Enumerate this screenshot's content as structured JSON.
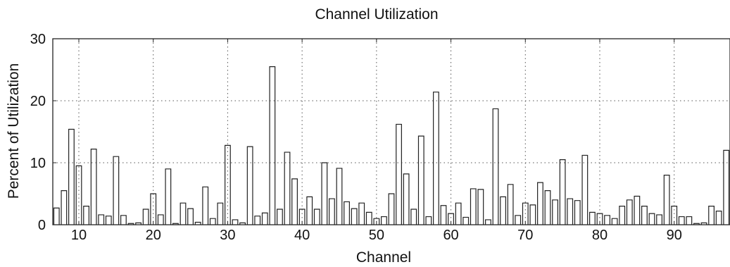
{
  "chart_data": {
    "type": "bar",
    "title": "Channel Utilization",
    "xlabel": "Channel",
    "ylabel": "Percent of Utilization",
    "xlim": [
      6.5,
      97.5
    ],
    "ylim": [
      0,
      30
    ],
    "xticks": [
      10,
      20,
      30,
      40,
      50,
      60,
      70,
      80,
      90
    ],
    "yticks": [
      0,
      10,
      20,
      30
    ],
    "grid": true,
    "grid_style": "dotted",
    "legend": "none",
    "colors": {
      "stroke": "#222222",
      "grid": "#555555",
      "background": "#ffffff"
    },
    "x": [
      7,
      8,
      9,
      10,
      11,
      12,
      13,
      14,
      15,
      16,
      17,
      18,
      19,
      20,
      21,
      22,
      23,
      24,
      25,
      26,
      27,
      28,
      29,
      30,
      31,
      32,
      33,
      34,
      35,
      36,
      37,
      38,
      39,
      40,
      41,
      42,
      43,
      44,
      45,
      46,
      47,
      48,
      49,
      50,
      51,
      52,
      53,
      54,
      55,
      56,
      57,
      58,
      59,
      60,
      61,
      62,
      63,
      64,
      65,
      66,
      67,
      68,
      69,
      70,
      71,
      72,
      73,
      74,
      75,
      76,
      77,
      78,
      79,
      80,
      81,
      82,
      83,
      84,
      85,
      86,
      87,
      88,
      89,
      90,
      91,
      92,
      93,
      94,
      95,
      96,
      97
    ],
    "values": [
      2.7,
      5.5,
      15.4,
      9.5,
      3.0,
      12.2,
      1.6,
      1.4,
      11.0,
      1.5,
      0.2,
      0.3,
      2.5,
      5.0,
      1.6,
      9.0,
      0.2,
      3.5,
      2.6,
      0.4,
      6.1,
      1.0,
      3.5,
      12.8,
      0.8,
      0.3,
      12.6,
      1.4,
      1.9,
      25.5,
      2.5,
      11.7,
      7.4,
      2.5,
      4.5,
      2.5,
      10.0,
      4.2,
      9.1,
      3.7,
      2.6,
      3.5,
      2.0,
      1.0,
      1.3,
      5.0,
      16.2,
      8.2,
      2.5,
      14.3,
      1.3,
      21.4,
      3.1,
      1.8,
      3.5,
      1.2,
      5.8,
      5.7,
      0.8,
      18.7,
      4.5,
      6.5,
      1.5,
      3.5,
      3.2,
      6.8,
      5.5,
      4.0,
      10.5,
      4.2,
      3.9,
      11.2,
      2.0,
      1.8,
      1.5,
      1.0,
      3.0,
      4.0,
      4.6,
      3.0,
      1.8,
      1.6,
      8.0,
      3.0,
      1.3,
      1.3,
      0.2,
      0.3,
      3.0,
      2.2,
      12.0
    ]
  }
}
